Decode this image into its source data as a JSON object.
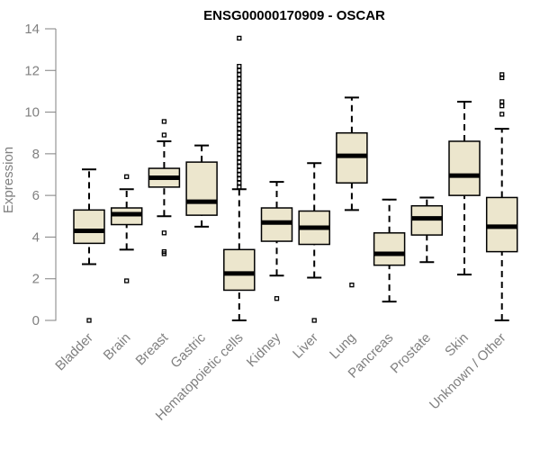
{
  "chart_data": {
    "type": "boxplot",
    "title": "ENSG00000170909 - OSCAR",
    "xlabel": "",
    "ylabel": "Expression",
    "ylim": [
      0,
      14
    ],
    "yticks": [
      0,
      2,
      4,
      6,
      8,
      10,
      12,
      14
    ],
    "categories": [
      "Bladder",
      "Brain",
      "Breast",
      "Gastric",
      "Hematopoietic cells",
      "Kidney",
      "Liver",
      "Lung",
      "Pancreas",
      "Prostate",
      "Skin",
      "Unknown / Other"
    ],
    "boxes": [
      {
        "category": "Bladder",
        "whisker_low": 2.7,
        "q1": 3.7,
        "median": 4.3,
        "q3": 5.3,
        "whisker_high": 7.25,
        "outliers": [
          0.0
        ]
      },
      {
        "category": "Brain",
        "whisker_low": 3.4,
        "q1": 4.6,
        "median": 5.1,
        "q3": 5.4,
        "whisker_high": 6.3,
        "outliers": [
          1.9,
          6.9
        ]
      },
      {
        "category": "Breast",
        "whisker_low": 5.0,
        "q1": 6.4,
        "median": 6.85,
        "q3": 7.3,
        "whisker_high": 8.6,
        "outliers": [
          3.2,
          3.3,
          4.2,
          8.9,
          9.55
        ]
      },
      {
        "category": "Gastric",
        "whisker_low": 4.5,
        "q1": 5.05,
        "median": 5.7,
        "q3": 7.6,
        "whisker_high": 8.4,
        "outliers": []
      },
      {
        "category": "Hematopoietic cells",
        "whisker_low": 0.0,
        "q1": 1.45,
        "median": 2.25,
        "q3": 3.4,
        "whisker_high": 6.3,
        "outliers": [
          6.4,
          6.6,
          6.8,
          7.0,
          7.2,
          7.4,
          7.6,
          7.8,
          8.0,
          8.2,
          8.4,
          8.6,
          8.8,
          9.0,
          9.2,
          9.4,
          9.6,
          9.8,
          10.0,
          10.2,
          10.4,
          10.6,
          10.8,
          11.0,
          11.2,
          11.4,
          11.6,
          11.8,
          12.0,
          12.2,
          13.55
        ]
      },
      {
        "category": "Kidney",
        "whisker_low": 2.15,
        "q1": 3.8,
        "median": 4.7,
        "q3": 5.4,
        "whisker_high": 6.65,
        "outliers": [
          1.05
        ]
      },
      {
        "category": "Liver",
        "whisker_low": 2.05,
        "q1": 3.65,
        "median": 4.45,
        "q3": 5.25,
        "whisker_high": 7.55,
        "outliers": [
          0.0
        ]
      },
      {
        "category": "Lung",
        "whisker_low": 5.3,
        "q1": 6.6,
        "median": 7.9,
        "q3": 9.0,
        "whisker_high": 10.7,
        "outliers": [
          1.7
        ]
      },
      {
        "category": "Pancreas",
        "whisker_low": 0.9,
        "q1": 2.65,
        "median": 3.2,
        "q3": 4.2,
        "whisker_high": 5.8,
        "outliers": []
      },
      {
        "category": "Prostate",
        "whisker_low": 2.8,
        "q1": 4.1,
        "median": 4.9,
        "q3": 5.5,
        "whisker_high": 5.9,
        "outliers": []
      },
      {
        "category": "Skin",
        "whisker_low": 2.2,
        "q1": 6.0,
        "median": 6.95,
        "q3": 8.6,
        "whisker_high": 10.5,
        "outliers": []
      },
      {
        "category": "Unknown / Other",
        "whisker_low": 0.0,
        "q1": 3.3,
        "median": 4.5,
        "q3": 5.9,
        "whisker_high": 9.2,
        "outliers": [
          9.9,
          10.3,
          10.5,
          11.65,
          11.8
        ]
      }
    ],
    "colors": {
      "box_fill": "#ece6cd",
      "box_stroke": "#000000",
      "axis": "#808080",
      "label": "#808080"
    },
    "grid": false
  }
}
